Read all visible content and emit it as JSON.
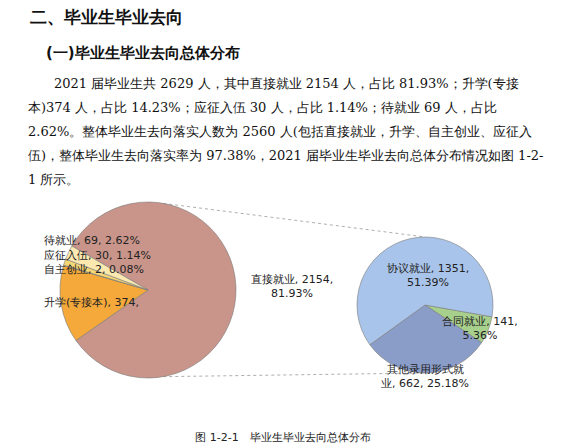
{
  "heading": "二、毕业生毕业去向",
  "subheading": "(一)毕业生毕业去向总体分布",
  "paragraph": "2021 届毕业生共 2629 人，其中直接就业 2154 人，占比 81.93%；升学(专接本)374 人，占比 14.23%；应征入伍 30 人，占比 1.14%；待就业 69 人，占比 2.62%。整体毕业生去向落实人数为 2560 人(包括直接就业，升学、自主创业、应征入伍)，整体毕业生去向落实率为 97.38%，2021 届毕业生毕业去向总体分布情况如图 1-2-1 所示。",
  "chart_data": [
    {
      "type": "pie",
      "labels": [
        "直接就业, 2154,\n81.93%",
        "升学(专接本), 374,",
        "自主创业, 2, 0.08%",
        "应征入伍, 30, 1.14%",
        "待就业, 69, 2.62%"
      ],
      "values": [
        2154,
        374,
        2,
        30,
        69
      ],
      "colors": [
        "#c9958a",
        "#f4a93a",
        "#e8c35a",
        "#f6d776",
        "#fbe9b0"
      ],
      "data_labels": true
    },
    {
      "type": "pie",
      "labels": [
        "合同就业, 141,\n5.36%",
        "其他录用形式就\n业, 662, 25.18%",
        "协议就业, 1351,\n51.39%"
      ],
      "values": [
        141,
        662,
        1351
      ],
      "colors": [
        "#a8d08d",
        "#8a9cc8",
        "#a9c4ea"
      ],
      "data_labels": true
    }
  ],
  "caption": "图 1-2-1　毕业生毕业去向总体分布"
}
